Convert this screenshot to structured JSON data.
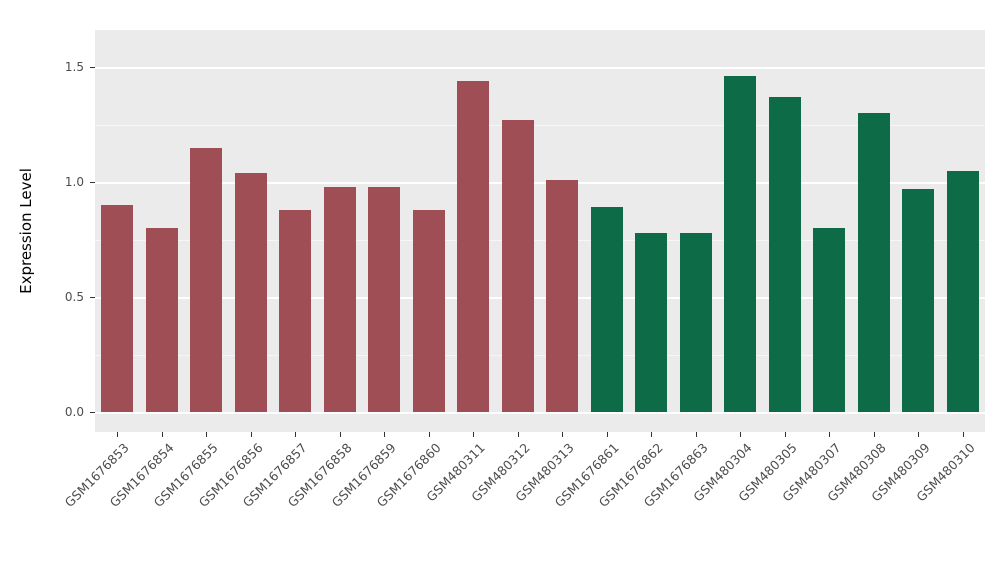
{
  "figure": {
    "background": "#FFFFFF",
    "panel_background": "#EBEBEB",
    "grid_color": "#FFFFFF",
    "axis_text_color": "#4D4D4D",
    "axis_title_color": "#000000"
  },
  "chart_data": {
    "type": "bar",
    "title": "",
    "xlabel": "",
    "ylabel": "Expression Level",
    "ylim": [
      0,
      1.55
    ],
    "yticks": [
      0.0,
      0.5,
      1.0,
      1.5
    ],
    "yticks_minor": [
      0.25,
      0.75,
      1.25
    ],
    "grid": true,
    "legend": "none",
    "categories": [
      "GSM1676853",
      "GSM1676854",
      "GSM1676855",
      "GSM1676856",
      "GSM1676857",
      "GSM1676858",
      "GSM1676859",
      "GSM1676860",
      "GSM480311",
      "GSM480312",
      "GSM480313",
      "GSM1676861",
      "GSM1676862",
      "GSM1676863",
      "GSM480304",
      "GSM480305",
      "GSM480307",
      "GSM480308",
      "GSM480309",
      "GSM480310"
    ],
    "values": [
      0.9,
      0.8,
      1.15,
      1.04,
      0.88,
      0.98,
      0.98,
      0.88,
      1.44,
      1.27,
      1.01,
      0.89,
      0.78,
      0.78,
      1.46,
      1.37,
      0.8,
      1.3,
      0.97,
      1.05
    ],
    "groups": [
      "group1",
      "group1",
      "group1",
      "group1",
      "group1",
      "group1",
      "group1",
      "group1",
      "group1",
      "group1",
      "group1",
      "group2",
      "group2",
      "group2",
      "group2",
      "group2",
      "group2",
      "group2",
      "group2",
      "group2"
    ],
    "group_colors": {
      "group1": "#A04E55",
      "group2": "#0E6B47"
    }
  }
}
